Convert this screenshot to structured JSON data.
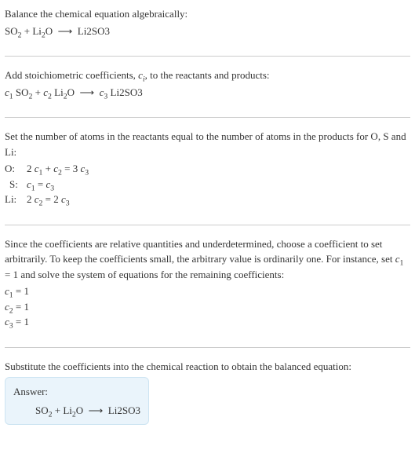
{
  "colors": {
    "text": "#333333",
    "background": "#ffffff",
    "divider": "#cccccc",
    "answer_bg": "#eaf4fb",
    "answer_border": "#cde4f2"
  },
  "typography": {
    "font_family": "Georgia, 'Times New Roman', serif",
    "base_fontsize": 13
  },
  "section1": {
    "text": "Balance the chemical equation algebraically:",
    "equation_html": "SO<sub>2</sub> + Li<sub>2</sub>O &nbsp;⟶&nbsp; Li2SO3"
  },
  "section2": {
    "text_html": "Add stoichiometric coefficients, <span class=\"italic\">c<sub>i</sub></span>, to the reactants and products:",
    "equation_html": "<span class=\"italic\">c</span><sub>1</sub> SO<sub>2</sub> + <span class=\"italic\">c</span><sub>2</sub> Li<sub>2</sub>O &nbsp;⟶&nbsp; <span class=\"italic\">c</span><sub>3</sub> Li2SO3"
  },
  "section3": {
    "text": "Set the number of atoms in the reactants equal to the number of atoms in the products for O, S and Li:",
    "rows": [
      {
        "label": "O:",
        "eq_html": "2 <span class=\"italic\">c</span><sub>1</sub> + <span class=\"italic\">c</span><sub>2</sub> = 3 <span class=\"italic\">c</span><sub>3</sub>"
      },
      {
        "label": "S:",
        "eq_html": "<span class=\"italic\">c</span><sub>1</sub> = <span class=\"italic\">c</span><sub>3</sub>"
      },
      {
        "label": "Li:",
        "eq_html": "2 <span class=\"italic\">c</span><sub>2</sub> = 2 <span class=\"italic\">c</span><sub>3</sub>"
      }
    ]
  },
  "section4": {
    "text_html": "Since the coefficients are relative quantities and underdetermined, choose a coefficient to set arbitrarily. To keep the coefficients small, the arbitrary value is ordinarily one. For instance, set <span class=\"italic\">c</span><sub>1</sub> = 1 and solve the system of equations for the remaining coefficients:",
    "coeffs": [
      "<span class=\"italic\">c</span><sub>1</sub> = 1",
      "<span class=\"italic\">c</span><sub>2</sub> = 1",
      "<span class=\"italic\">c</span><sub>3</sub> = 1"
    ]
  },
  "section5": {
    "text": "Substitute the coefficients into the chemical reaction to obtain the balanced equation:",
    "answer_label": "Answer:",
    "answer_eq_html": "SO<sub>2</sub> + Li<sub>2</sub>O &nbsp;⟶&nbsp; Li2SO3"
  }
}
